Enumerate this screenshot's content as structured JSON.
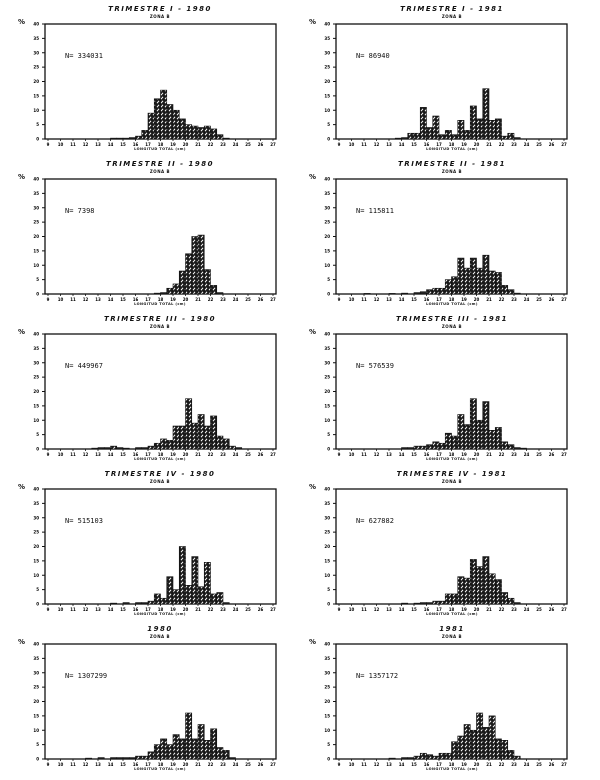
{
  "figure": {
    "y_unit": "%",
    "x_axis_label": "LONGITUD TOTAL (cm)",
    "y_ticks": [
      0,
      5,
      10,
      15,
      20,
      25,
      30,
      35,
      40
    ],
    "x_ticks": [
      9,
      10,
      11,
      12,
      13,
      14,
      15,
      16,
      17,
      18,
      19,
      20,
      21,
      22,
      23,
      24,
      25,
      26,
      27
    ]
  },
  "panels": [
    {
      "title": "TRIMESTRE I - 1980",
      "subtitle": "ZONA B",
      "n_label": "N= 334031"
    },
    {
      "title": "TRIMESTRE I - 1981",
      "subtitle": "ZONA B",
      "n_label": "N= 86940"
    },
    {
      "title": "TRIMESTRE II - 1980",
      "subtitle": "ZONA B",
      "n_label": "N= 7398"
    },
    {
      "title": "TRIMESTRE II - 1981",
      "subtitle": "ZONA B",
      "n_label": "N= 115811"
    },
    {
      "title": "TRIMESTRE III - 1980",
      "subtitle": "ZONA B",
      "n_label": "N= 449967"
    },
    {
      "title": "TRIMESTRE III - 1981",
      "subtitle": "ZONA B",
      "n_label": "N= 576539"
    },
    {
      "title": "TRIMESTRE IV - 1980",
      "subtitle": "ZONA B",
      "n_label": "N= 515103"
    },
    {
      "title": "TRIMESTRE IV - 1981",
      "subtitle": "ZONA B",
      "n_label": "N= 627882"
    },
    {
      "title": "1980",
      "subtitle": "ZONA B",
      "n_label": "N= 1307299"
    },
    {
      "title": "1981",
      "subtitle": "ZONA B",
      "n_label": "N= 1357172"
    }
  ],
  "chart_data": [
    {
      "type": "bar",
      "title": "TRIMESTRE I - 1980",
      "subtitle": "ZONA B",
      "n": 334031,
      "xlabel": "LONGITUD TOTAL (cm)",
      "ylabel": "%",
      "xlim": [
        9,
        27
      ],
      "ylim": [
        0,
        40
      ],
      "bin_width": 0.5,
      "x": [
        14,
        14.5,
        15,
        15.5,
        16,
        16.5,
        17,
        17.5,
        18,
        18.5,
        19,
        19.5,
        20,
        20.5,
        21,
        21.5,
        22,
        22.5,
        23
      ],
      "values": [
        0.3,
        0.3,
        0.3,
        0.5,
        1,
        3,
        9,
        14,
        17,
        12,
        10,
        7,
        5,
        4.5,
        4,
        4.5,
        3.5,
        1.5,
        0.3
      ]
    },
    {
      "type": "bar",
      "title": "TRIMESTRE I - 1981",
      "subtitle": "ZONA B",
      "n": 86940,
      "xlabel": "LONGITUD TOTAL (cm)",
      "ylabel": "%",
      "xlim": [
        9,
        27
      ],
      "ylim": [
        0,
        40
      ],
      "bin_width": 0.5,
      "x": [
        13.5,
        14,
        14.5,
        15,
        15.5,
        16,
        16.5,
        17,
        17.5,
        18,
        18.5,
        19,
        19.5,
        20,
        20.5,
        21,
        21.5,
        22,
        22.5,
        23
      ],
      "values": [
        0.3,
        0.5,
        2,
        2,
        11,
        4,
        8,
        1.5,
        3,
        1.5,
        6.5,
        3,
        11.5,
        7,
        17.5,
        6.5,
        7,
        1,
        2,
        0.5
      ]
    },
    {
      "type": "bar",
      "title": "TRIMESTRE II - 1980",
      "subtitle": "ZONA B",
      "n": 7398,
      "xlabel": "LONGITUD TOTAL (cm)",
      "ylabel": "%",
      "xlim": [
        9,
        27
      ],
      "ylim": [
        0,
        40
      ],
      "bin_width": 0.5,
      "x": [
        17.5,
        18,
        18.5,
        19,
        19.5,
        20,
        20.5,
        21,
        21.5,
        22,
        22.5
      ],
      "values": [
        0.3,
        0.5,
        2,
        3.5,
        8,
        14,
        20,
        20.5,
        8.5,
        3,
        0.5
      ]
    },
    {
      "type": "bar",
      "title": "TRIMESTRE II - 1981",
      "subtitle": "ZONA B",
      "n": 115811,
      "xlabel": "LONGITUD TOTAL (cm)",
      "ylabel": "%",
      "xlim": [
        9,
        27
      ],
      "ylim": [
        0,
        40
      ],
      "bin_width": 0.5,
      "x": [
        11,
        13,
        14,
        15,
        15.5,
        16,
        16.5,
        17,
        17.5,
        18,
        18.5,
        19,
        19.5,
        20,
        20.5,
        21,
        21.5,
        22,
        22.5,
        23
      ],
      "values": [
        0.2,
        0.2,
        0.3,
        0.5,
        0.8,
        1.5,
        2,
        2,
        5,
        6,
        12.5,
        9,
        12.5,
        9,
        13.5,
        8,
        7.5,
        3,
        1.5,
        0.3
      ]
    },
    {
      "type": "bar",
      "title": "TRIMESTRE III - 1980",
      "subtitle": "ZONA B",
      "n": 449967,
      "xlabel": "LONGITUD TOTAL (cm)",
      "ylabel": "%",
      "xlim": [
        9,
        27
      ],
      "ylim": [
        0,
        40
      ],
      "bin_width": 0.5,
      "x": [
        12.5,
        13,
        13.5,
        14,
        14.5,
        15,
        16,
        16.5,
        17,
        17.5,
        18,
        18.5,
        19,
        19.5,
        20,
        20.5,
        21,
        21.5,
        22,
        22.5,
        23,
        23.5,
        24
      ],
      "values": [
        0.3,
        0.5,
        0.5,
        1,
        0.5,
        0.3,
        0.5,
        0.5,
        1,
        2,
        3.5,
        3,
        8,
        8,
        17.5,
        9,
        12,
        8,
        11.5,
        4.5,
        3.5,
        1,
        0.5
      ]
    },
    {
      "type": "bar",
      "title": "TRIMESTRE III - 1981",
      "subtitle": "ZONA B",
      "n": 576539,
      "xlabel": "LONGITUD TOTAL (cm)",
      "ylabel": "%",
      "xlim": [
        9,
        27
      ],
      "ylim": [
        0,
        40
      ],
      "bin_width": 0.5,
      "x": [
        14,
        14.5,
        15,
        15.5,
        16,
        16.5,
        17,
        17.5,
        18,
        18.5,
        19,
        19.5,
        20,
        20.5,
        21,
        21.5,
        22,
        22.5,
        23,
        23.5
      ],
      "values": [
        0.5,
        0.5,
        1,
        1,
        1.5,
        2.5,
        2,
        5.5,
        4.5,
        12,
        8.5,
        17.5,
        10,
        16.5,
        6.5,
        7.5,
        2.5,
        1.5,
        0.5,
        0.3
      ]
    },
    {
      "type": "bar",
      "title": "TRIMESTRE IV - 1980",
      "subtitle": "ZONA B",
      "n": 515103,
      "xlabel": "LONGITUD TOTAL (cm)",
      "ylabel": "%",
      "xlim": [
        9,
        27
      ],
      "ylim": [
        0,
        40
      ],
      "bin_width": 0.5,
      "x": [
        14,
        15,
        16,
        16.5,
        17,
        17.5,
        18,
        18.5,
        19,
        19.5,
        20,
        20.5,
        21,
        21.5,
        22,
        22.5,
        23
      ],
      "values": [
        0.3,
        0.5,
        0.5,
        0.5,
        1,
        3.5,
        2,
        9.5,
        5,
        20,
        6.5,
        16.5,
        6,
        14.5,
        3.5,
        4,
        0.5
      ]
    },
    {
      "type": "bar",
      "title": "TRIMESTRE IV - 1981",
      "subtitle": "ZONA B",
      "n": 627882,
      "xlabel": "LONGITUD TOTAL (cm)",
      "ylabel": "%",
      "xlim": [
        9,
        27
      ],
      "ylim": [
        0,
        40
      ],
      "bin_width": 0.5,
      "x": [
        14,
        15,
        15.5,
        16,
        16.5,
        17,
        17.5,
        18,
        18.5,
        19,
        19.5,
        20,
        20.5,
        21,
        21.5,
        22,
        22.5,
        23
      ],
      "values": [
        0.3,
        0.3,
        0.5,
        0.5,
        1,
        1,
        3.5,
        3.5,
        9.5,
        9,
        15.5,
        13,
        16.5,
        10.5,
        8.5,
        4,
        2,
        0.5
      ]
    },
    {
      "type": "bar",
      "title": "1980",
      "subtitle": "ZONA B",
      "n": 1307299,
      "xlabel": "LONGITUD TOTAL (cm)",
      "ylabel": "%",
      "xlim": [
        9,
        27
      ],
      "ylim": [
        0,
        40
      ],
      "bin_width": 0.5,
      "x": [
        12,
        13,
        14,
        14.5,
        15,
        15.5,
        16,
        16.5,
        17,
        17.5,
        18,
        18.5,
        19,
        19.5,
        20,
        20.5,
        21,
        21.5,
        22,
        22.5,
        23,
        23.5
      ],
      "values": [
        0.3,
        0.5,
        0.5,
        0.5,
        0.5,
        0.5,
        1,
        1,
        2.5,
        5,
        7,
        5,
        8.5,
        7,
        16,
        7,
        12,
        6.5,
        10.5,
        4,
        3,
        0.5
      ]
    },
    {
      "type": "bar",
      "title": "1981",
      "subtitle": "ZONA B",
      "n": 1357172,
      "xlabel": "LONGITUD TOTAL (cm)",
      "ylabel": "%",
      "xlim": [
        9,
        27
      ],
      "ylim": [
        0,
        40
      ],
      "bin_width": 0.5,
      "x": [
        13,
        14,
        14.5,
        15,
        15.5,
        16,
        16.5,
        17,
        17.5,
        18,
        18.5,
        19,
        19.5,
        20,
        20.5,
        21,
        21.5,
        22,
        22.5,
        23
      ],
      "values": [
        0.3,
        0.5,
        0.5,
        1,
        2,
        1.5,
        1,
        2,
        2,
        6,
        8,
        12,
        10,
        16,
        11,
        15,
        7,
        6.5,
        3,
        1
      ]
    }
  ]
}
